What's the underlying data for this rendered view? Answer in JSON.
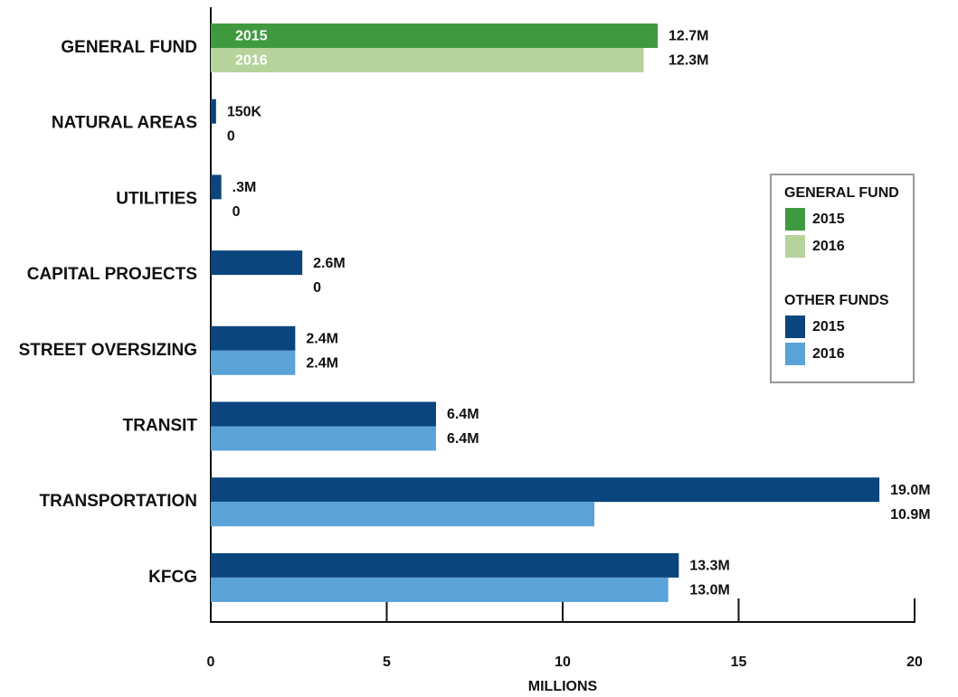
{
  "chart_data": {
    "type": "hbar",
    "categories": [
      "GENERAL FUND",
      "NATURAL AREAS",
      "UTILITIES",
      "CAPITAL PROJECTS",
      "STREET OVERSIZING",
      "TRANSIT",
      "TRANSPORTATION",
      "KFCG"
    ],
    "series": [
      {
        "name": "2015",
        "values": [
          12.7,
          0.15,
          0.3,
          2.6,
          2.4,
          6.4,
          19.0,
          13.3
        ],
        "value_labels": [
          "12.7M",
          "150K",
          ".3M",
          "2.6M",
          "2.4M",
          "6.4M",
          "19.0M",
          "13.3M"
        ],
        "colors": [
          "#3f9a3f",
          "#0a457d",
          "#0a457d",
          "#0a457d",
          "#0a457d",
          "#0a457d",
          "#0a457d",
          "#0a457d"
        ]
      },
      {
        "name": "2016",
        "values": [
          12.3,
          0,
          0,
          0,
          2.4,
          6.4,
          10.9,
          13.0
        ],
        "value_labels": [
          "12.3M",
          "0",
          "0",
          "0",
          "2.4M",
          "6.4M",
          "10.9M",
          "13.0M"
        ],
        "colors": [
          "#b5d39b",
          "#5aa2d8",
          "#5aa2d8",
          "#5aa2d8",
          "#5aa2d8",
          "#5aa2d8",
          "#5aa2d8",
          "#5aa2d8"
        ]
      }
    ],
    "legend_groups": [
      {
        "title": "GENERAL FUND",
        "colors": [
          "#3f9a3f",
          "#b5d39b"
        ]
      },
      {
        "title": "OTHER FUNDS",
        "colors": [
          "#0a457d",
          "#5aa2d8"
        ]
      }
    ],
    "xlabel": "MILLIONS",
    "xlim": [
      0,
      20
    ],
    "xticks": [
      0,
      5,
      10,
      15,
      20
    ]
  }
}
